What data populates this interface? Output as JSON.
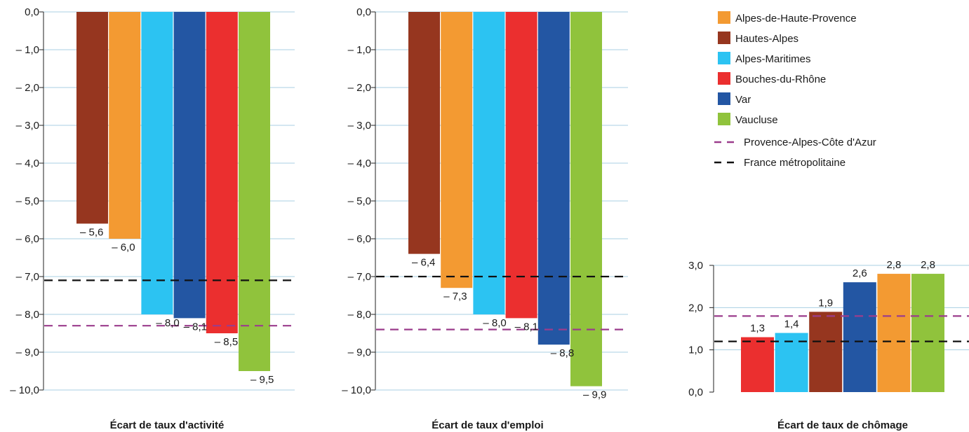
{
  "colors": {
    "Alpes-de-Haute-Provence": "#f39a32",
    "Hautes-Alpes": "#96361f",
    "Alpes-Maritimes": "#2cc3f2",
    "Bouches-du-Rhône": "#eb2f2f",
    "Var": "#2356a3",
    "Vaucluse": "#90c33c",
    "Provence-Alpes-Côte d'Azur": "#9b3d8c",
    "France métropolitaine": "#111111",
    "gridline": "#a9cfe3"
  },
  "legend": {
    "items": [
      {
        "label": "Alpes-de-Haute-Provence",
        "kind": "swatch"
      },
      {
        "label": "Hautes-Alpes",
        "kind": "swatch"
      },
      {
        "label": "Alpes-Maritimes",
        "kind": "swatch"
      },
      {
        "label": "Bouches-du-Rhône",
        "kind": "swatch"
      },
      {
        "label": "Var",
        "kind": "swatch"
      },
      {
        "label": "Vaucluse",
        "kind": "swatch"
      },
      {
        "label": "Provence-Alpes-Côte d'Azur",
        "kind": "dashed-line"
      },
      {
        "label": "France métropolitaine",
        "kind": "dashed-line"
      }
    ]
  },
  "chart_data": [
    {
      "type": "bar",
      "title": "Écart de taux d'activité",
      "xlabel": "",
      "ylabel": "",
      "ylim": [
        -10,
        0
      ],
      "yticks": [
        0,
        -1,
        -2,
        -3,
        -4,
        -5,
        -6,
        -7,
        -8,
        -9,
        -10
      ],
      "ytick_labels": [
        "0,0",
        "– 1,0",
        "– 2,0",
        "– 3,0",
        "– 4,0",
        "– 5,0",
        "– 6,0",
        "– 7,0",
        "– 8,0",
        "– 9,0",
        "– 10,0"
      ],
      "grid": true,
      "bars": [
        {
          "series": "Hautes-Alpes",
          "value": -5.6,
          "label": "– 5,6"
        },
        {
          "series": "Alpes-de-Haute-Provence",
          "value": -6.0,
          "label": "– 6,0"
        },
        {
          "series": "Alpes-Maritimes",
          "value": -8.0,
          "label": "– 8,0"
        },
        {
          "series": "Var",
          "value": -8.1,
          "label": "– 8,1"
        },
        {
          "series": "Bouches-du-Rhône",
          "value": -8.5,
          "label": "– 8,5"
        },
        {
          "series": "Vaucluse",
          "value": -9.5,
          "label": "– 9,5"
        }
      ],
      "reference_lines": [
        {
          "series": "France métropolitaine",
          "value": -7.1
        },
        {
          "series": "Provence-Alpes-Côte d'Azur",
          "value": -8.3
        }
      ]
    },
    {
      "type": "bar",
      "title": "Écart de taux d'emploi",
      "xlabel": "",
      "ylabel": "",
      "ylim": [
        -10,
        0
      ],
      "yticks": [
        0,
        -1,
        -2,
        -3,
        -4,
        -5,
        -6,
        -7,
        -8,
        -9,
        -10
      ],
      "ytick_labels": [
        "0,0",
        "– 1,0",
        "– 2,0",
        "– 3,0",
        "– 4,0",
        "– 5,0",
        "– 6,0",
        "– 7,0",
        "– 8,0",
        "– 9,0",
        "– 10,0"
      ],
      "grid": true,
      "bars": [
        {
          "series": "Hautes-Alpes",
          "value": -6.4,
          "label": "– 6,4"
        },
        {
          "series": "Alpes-de-Haute-Provence",
          "value": -7.3,
          "label": "– 7,3"
        },
        {
          "series": "Alpes-Maritimes",
          "value": -8.0,
          "label": "– 8,0"
        },
        {
          "series": "Bouches-du-Rhône",
          "value": -8.1,
          "label": "– 8,1"
        },
        {
          "series": "Var",
          "value": -8.8,
          "label": "– 8,8"
        },
        {
          "series": "Vaucluse",
          "value": -9.9,
          "label": "– 9,9"
        }
      ],
      "reference_lines": [
        {
          "series": "France métropolitaine",
          "value": -7.0
        },
        {
          "series": "Provence-Alpes-Côte d'Azur",
          "value": -8.4
        }
      ]
    },
    {
      "type": "bar",
      "title": "Écart de taux de chômage",
      "xlabel": "",
      "ylabel": "",
      "ylim": [
        0,
        3
      ],
      "yticks": [
        0,
        1,
        2,
        3
      ],
      "ytick_labels": [
        "0,0",
        "1,0",
        "2,0",
        "3,0"
      ],
      "grid": true,
      "bars": [
        {
          "series": "Bouches-du-Rhône",
          "value": 1.3,
          "label": "1,3"
        },
        {
          "series": "Alpes-Maritimes",
          "value": 1.4,
          "label": "1,4"
        },
        {
          "series": "Hautes-Alpes",
          "value": 1.9,
          "label": "1,9"
        },
        {
          "series": "Var",
          "value": 2.6,
          "label": "2,6"
        },
        {
          "series": "Alpes-de-Haute-Provence",
          "value": 2.8,
          "label": "2,8"
        },
        {
          "series": "Vaucluse",
          "value": 2.8,
          "label": "2,8"
        }
      ],
      "reference_lines": [
        {
          "series": "Provence-Alpes-Côte d'Azur",
          "value": 1.8
        },
        {
          "series": "France métropolitaine",
          "value": 1.2
        }
      ]
    }
  ]
}
